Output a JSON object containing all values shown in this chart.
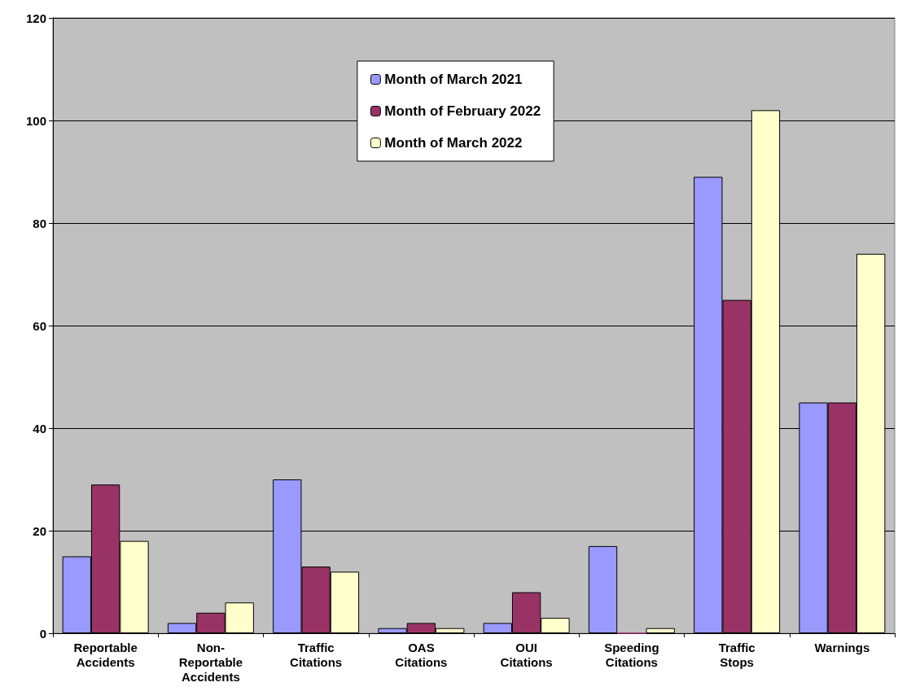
{
  "chart_data": {
    "type": "bar",
    "categories": [
      "Reportable Accidents",
      "Non-Reportable Accidents",
      "Traffic Citations",
      "OAS Citations",
      "OUI Citations",
      "Speeding Citations",
      "Traffic Stops",
      "Warnings"
    ],
    "series": [
      {
        "name": "Month of March 2021",
        "color": "#9999ff",
        "values": [
          15,
          2,
          30,
          1,
          2,
          17,
          89,
          45
        ]
      },
      {
        "name": "Month of February 2022",
        "color": "#993366",
        "values": [
          29,
          4,
          13,
          2,
          8,
          0,
          65,
          45
        ]
      },
      {
        "name": "Month of March 2022",
        "color": "#ffffcc",
        "values": [
          18,
          6,
          12,
          1,
          3,
          1,
          102,
          74
        ]
      }
    ],
    "ylim": [
      0,
      120
    ],
    "yticks": [
      0,
      20,
      40,
      60,
      80,
      100,
      120
    ],
    "grid": "y",
    "legend": "top"
  }
}
